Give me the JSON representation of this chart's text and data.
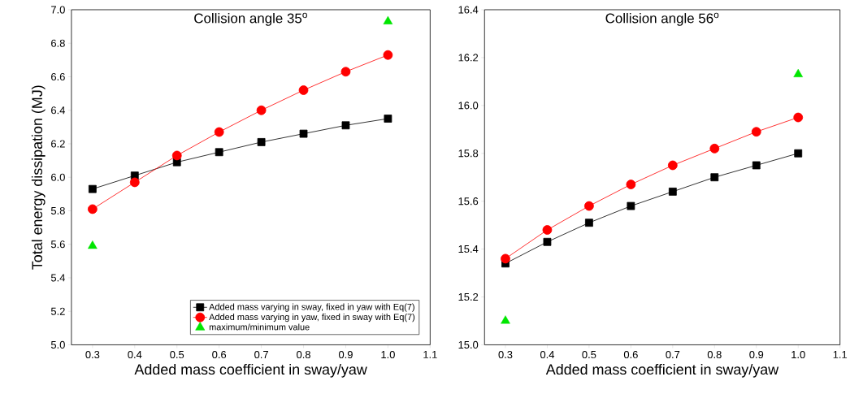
{
  "chart_data": [
    {
      "type": "line",
      "title": "Collision angle 35$^{o}$",
      "xlabel": "Added mass coefficient in sway/yaw",
      "ylabel": "Total energy dissipation (MJ)",
      "x": [
        0.3,
        0.4,
        0.5,
        0.6,
        0.7,
        0.8,
        0.9,
        1.0
      ],
      "series": [
        {
          "name": "Added mass varying in sway, fixed in yaw with Eq(7)",
          "color": "#000000",
          "marker": "square",
          "values": [
            5.93,
            6.01,
            6.09,
            6.15,
            6.21,
            6.26,
            6.31,
            6.35
          ]
        },
        {
          "name": "Added mass varying in yaw, fixed in sway with Eq(7)",
          "color": "#ff0000",
          "marker": "circle",
          "values": [
            5.81,
            5.97,
            6.13,
            6.27,
            6.4,
            6.52,
            6.63,
            6.73
          ]
        },
        {
          "name": "maximum/minimum value",
          "type": "scatter",
          "color": "#00e600",
          "marker": "triangle",
          "values": [
            5.59,
            null,
            null,
            null,
            null,
            null,
            null,
            6.93
          ]
        }
      ],
      "xlim": [
        0.25,
        1.1
      ],
      "ylim": [
        5.0,
        7.0
      ],
      "xticks": [
        0.3,
        0.4,
        0.5,
        0.6,
        0.7,
        0.8,
        0.9,
        {
          "value": 1.0,
          "label": "1.0"
        },
        1.1
      ],
      "yticks": [
        {
          "value": 5.0,
          "label": "5.0"
        },
        5.2,
        5.4,
        5.6,
        5.8,
        {
          "value": 6.0,
          "label": "6.0"
        },
        6.2,
        6.4,
        6.6,
        6.8,
        {
          "value": 7.0,
          "label": "7.0"
        }
      ],
      "legend": "bottom right",
      "grid": false
    },
    {
      "type": "line",
      "title": "Collision angle 56$^{o}$",
      "xlabel": "Added mass coefficient in sway/yaw",
      "x": [
        0.3,
        0.4,
        0.5,
        0.6,
        0.7,
        0.8,
        0.9,
        1.0
      ],
      "series": [
        {
          "color": "#000000",
          "marker": "square",
          "values": [
            15.34,
            15.43,
            15.51,
            15.58,
            15.64,
            15.7,
            15.75,
            15.8
          ]
        },
        {
          "color": "#ff0000",
          "marker": "circle",
          "values": [
            15.36,
            15.48,
            15.58,
            15.67,
            15.75,
            15.82,
            15.89,
            15.95
          ]
        },
        {
          "type": "scatter",
          "color": "#00e600",
          "marker": "triangle",
          "values": [
            15.1,
            null,
            null,
            null,
            null,
            null,
            null,
            16.13
          ]
        }
      ],
      "xlim": [
        0.25,
        1.1
      ],
      "ylim": [
        15.0,
        16.4
      ],
      "xticks": [
        0.3,
        0.4,
        0.5,
        0.6,
        0.7,
        0.8,
        0.9,
        {
          "value": 1.0,
          "label": "1.0"
        },
        1.1
      ],
      "yticks": [
        {
          "value": 15.0,
          "label": "15.0"
        },
        15.2,
        15.4,
        15.6,
        15.8,
        {
          "value": 16.0,
          "label": "16.0"
        },
        16.2,
        16.4
      ],
      "legend": false,
      "grid": false
    }
  ]
}
